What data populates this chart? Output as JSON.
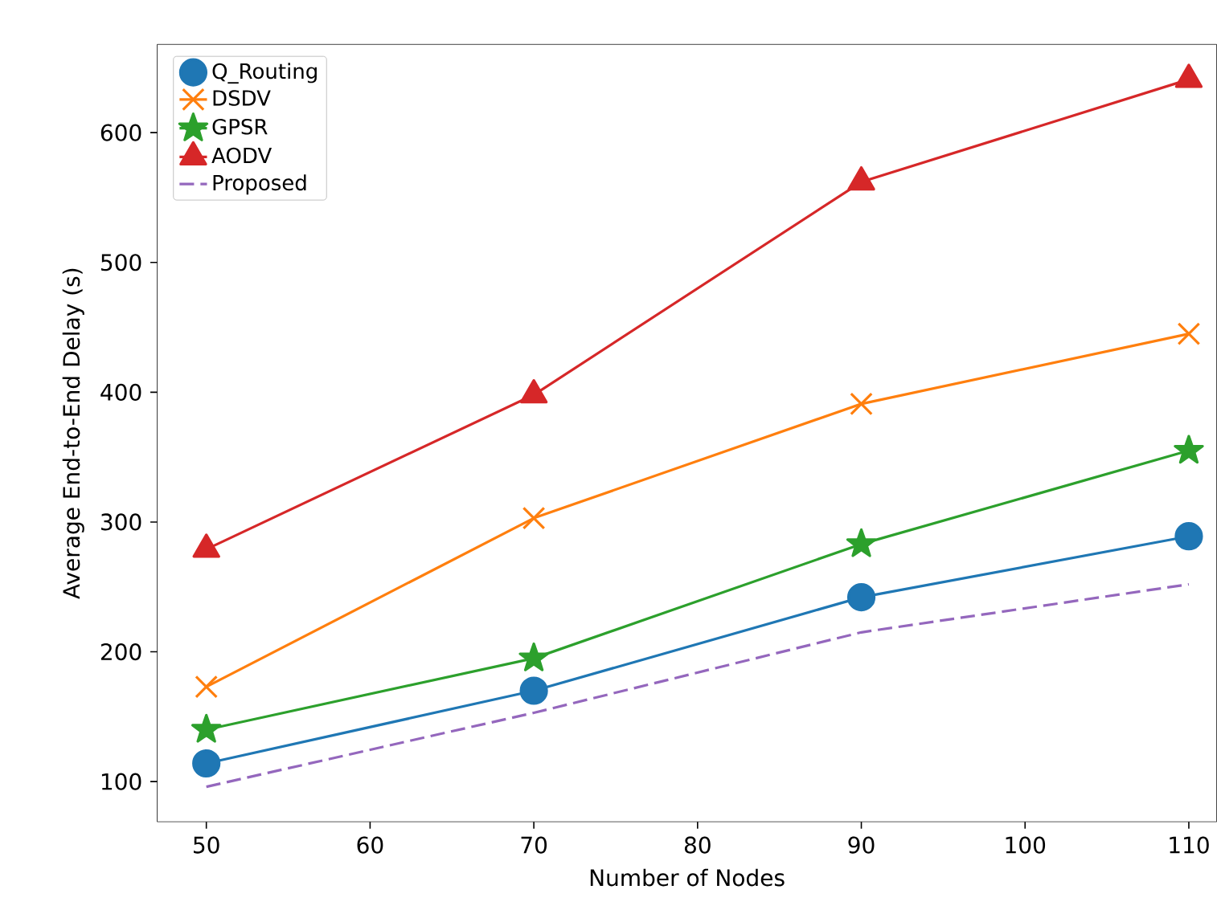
{
  "chart_data": {
    "type": "line",
    "xlabel": "Number of Nodes",
    "ylabel": "Average End-to-End Delay (s)",
    "x": [
      50,
      70,
      90,
      110
    ],
    "series": [
      {
        "name": "Q_Routing",
        "color": "#1f77b4",
        "marker": "circle",
        "line_style": "solid",
        "values": [
          114,
          170,
          242,
          289
        ]
      },
      {
        "name": "DSDV",
        "color": "#ff7f0e",
        "marker": "cross",
        "line_style": "solid",
        "values": [
          173,
          303,
          391,
          445
        ]
      },
      {
        "name": "GPSR",
        "color": "#2ca02c",
        "marker": "star",
        "line_style": "solid",
        "values": [
          140,
          195,
          283,
          355
        ]
      },
      {
        "name": "AODV",
        "color": "#d62728",
        "marker": "triangle",
        "line_style": "solid",
        "values": [
          279,
          398,
          562,
          641
        ]
      },
      {
        "name": "Proposed",
        "color": "#9467bd",
        "marker": "none",
        "line_style": "dashed",
        "values": [
          96,
          153,
          215,
          252
        ]
      }
    ],
    "xlim": [
      47,
      111.7
    ],
    "ylim": [
      69,
      668
    ],
    "xticks": [
      50,
      60,
      70,
      80,
      90,
      100,
      110
    ],
    "yticks": [
      100,
      200,
      300,
      400,
      500,
      600
    ],
    "grid": false,
    "legend": "top left"
  }
}
